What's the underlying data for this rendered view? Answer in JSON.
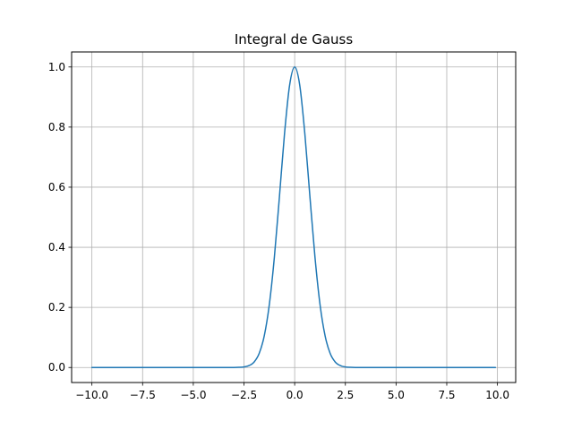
{
  "chart_data": {
    "type": "line",
    "title": "Integral de Gauss",
    "xlabel": "",
    "ylabel": "",
    "xlim": [
      -11.0,
      10.9
    ],
    "ylim": [
      -0.05,
      1.05
    ],
    "grid": true,
    "legend": "none",
    "x_ticks": [
      {
        "value": -10.0,
        "label": "−10.0"
      },
      {
        "value": -7.5,
        "label": "−7.5"
      },
      {
        "value": -5.0,
        "label": "−5.0"
      },
      {
        "value": -2.5,
        "label": "−2.5"
      },
      {
        "value": 0.0,
        "label": "0.0"
      },
      {
        "value": 2.5,
        "label": "2.5"
      },
      {
        "value": 5.0,
        "label": "5.0"
      },
      {
        "value": 7.5,
        "label": "7.5"
      },
      {
        "value": 10.0,
        "label": "10.0"
      }
    ],
    "y_ticks": [
      {
        "value": 0.0,
        "label": "0.0"
      },
      {
        "value": 0.2,
        "label": "0.2"
      },
      {
        "value": 0.4,
        "label": "0.4"
      },
      {
        "value": 0.6,
        "label": "0.6"
      },
      {
        "value": 0.8,
        "label": "0.8"
      },
      {
        "value": 1.0,
        "label": "1.0"
      }
    ],
    "series": [
      {
        "color": "#1f77b4",
        "x": [
          -10.0,
          -5.0,
          -3.0,
          -2.75,
          -2.5,
          -2.25,
          -2.0,
          -1.75,
          -1.5,
          -1.25,
          -1.0,
          -0.75,
          -0.5,
          -0.25,
          0.0,
          0.25,
          0.5,
          0.75,
          1.0,
          1.25,
          1.5,
          1.75,
          2.0,
          2.25,
          2.5,
          2.75,
          3.0,
          5.0,
          9.9
        ],
        "y": [
          0.0,
          0.0,
          0.0001,
          0.0005,
          0.0019,
          0.0063,
          0.0183,
          0.0468,
          0.1054,
          0.2096,
          0.3679,
          0.5698,
          0.7788,
          0.9394,
          1.0,
          0.9394,
          0.7788,
          0.5698,
          0.3679,
          0.2096,
          0.1054,
          0.0468,
          0.0183,
          0.0063,
          0.0019,
          0.0005,
          0.0001,
          0.0,
          0.0
        ]
      }
    ]
  },
  "colors": {
    "grid": "#b0b0b0",
    "axes": "#000000"
  }
}
